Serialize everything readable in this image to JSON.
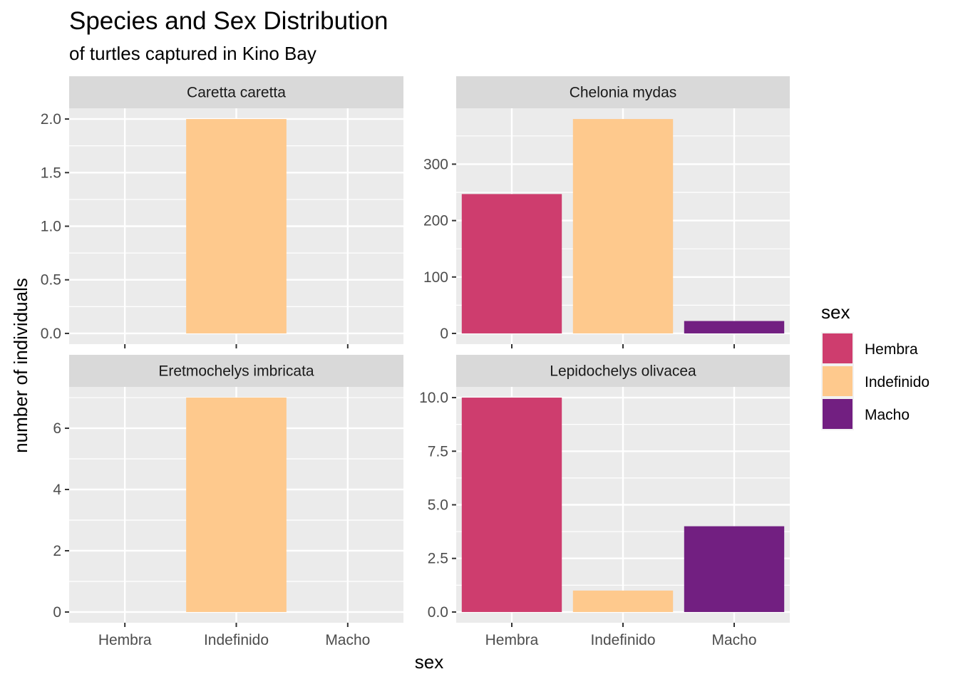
{
  "chart_data": {
    "type": "bar",
    "title": "Species and Sex Distribution",
    "subtitle": "of turtles captured in Kino Bay",
    "xlabel": "sex",
    "ylabel": "number of individuals",
    "categories": [
      "Hembra",
      "Indefinido",
      "Macho"
    ],
    "legend": {
      "title": "sex",
      "position": "right",
      "items": [
        {
          "label": "Hembra",
          "color": "#CE3D6E"
        },
        {
          "label": "Indefinido",
          "color": "#FEC98D"
        },
        {
          "label": "Macho",
          "color": "#721F81"
        }
      ]
    },
    "facets": [
      {
        "name": "Caretta caretta",
        "values": [
          0,
          2,
          0
        ],
        "ylim": [
          -0.1,
          2.1
        ],
        "yticks": [
          "0.0",
          "0.5",
          "1.0",
          "1.5",
          "2.0"
        ],
        "ytick_values": [
          0,
          0.5,
          1,
          1.5,
          2
        ],
        "show_x_labels": false
      },
      {
        "name": "Chelonia mydas",
        "values": [
          247,
          380,
          22
        ],
        "ylim": [
          -19,
          399
        ],
        "yticks": [
          "0",
          "100",
          "200",
          "300"
        ],
        "ytick_values": [
          0,
          100,
          200,
          300
        ],
        "show_x_labels": false
      },
      {
        "name": "Eretmochelys imbricata",
        "values": [
          0,
          7,
          0
        ],
        "ylim": [
          -0.35,
          7.35
        ],
        "yticks": [
          "0",
          "2",
          "4",
          "6"
        ],
        "ytick_values": [
          0,
          2,
          4,
          6
        ],
        "show_x_labels": true
      },
      {
        "name": "Lepidochelys olivacea",
        "values": [
          10,
          1,
          4
        ],
        "ylim": [
          -0.5,
          10.5
        ],
        "yticks": [
          "0.0",
          "2.5",
          "5.0",
          "7.5",
          "10.0"
        ],
        "ytick_values": [
          0,
          2.5,
          5,
          7.5,
          10
        ],
        "show_x_labels": true
      }
    ],
    "grid": true
  }
}
